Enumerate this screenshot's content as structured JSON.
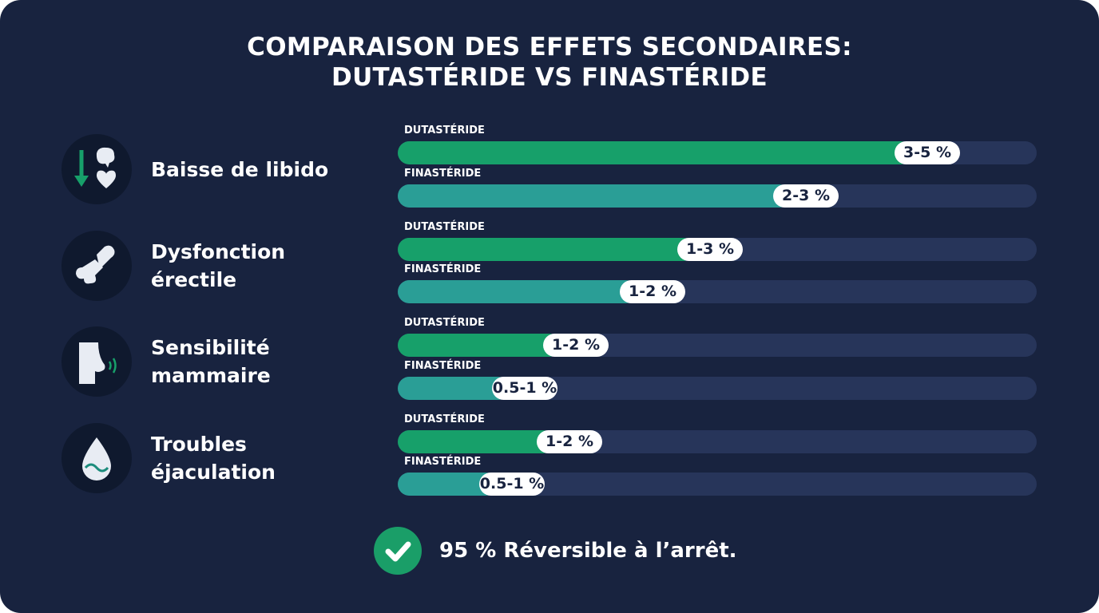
{
  "title_line1": "COMPARAISON DES EFFETS SECONDAIRES:",
  "title_line2": "DUTASTÉRIDE VS FINASTÉRIDE",
  "colors": {
    "background": "#18233f",
    "dutasteride": "#17a06a",
    "finasteride": "#2a9e96",
    "track": "#27355a",
    "check": "#1a9e68"
  },
  "chart_data": {
    "type": "bar",
    "orientation": "horizontal",
    "title": "COMPARAISON DES EFFETS SECONDAIRES: DUTASTÉRIDE VS FINASTÉRIDE",
    "categories": [
      {
        "label_lines": [
          "Baisse de libido"
        ],
        "icon": "libido-down-brain-heart-icon"
      },
      {
        "label_lines": [
          "Dysfonction",
          "érectile"
        ],
        "icon": "broken-penis-icon"
      },
      {
        "label_lines": [
          "Sensibilité",
          "mammaire"
        ],
        "icon": "breast-sensitivity-icon"
      },
      {
        "label_lines": [
          "Troubles",
          "éjaculation"
        ],
        "icon": "drop-wave-icon"
      }
    ],
    "series": [
      {
        "name": "DUTASTÉRIDE",
        "labels": [
          "3-5 %",
          "1-3 %",
          "1-2 %",
          "1-2 %"
        ],
        "fill_fraction": [
          0.88,
          0.54,
          0.33,
          0.32
        ]
      },
      {
        "name": "FINASTÉRIDE",
        "labels": [
          "2-3 %",
          "1-2 %",
          "0.5-1 %",
          "0.5-1 %"
        ],
        "fill_fraction": [
          0.69,
          0.45,
          0.25,
          0.23
        ]
      }
    ]
  },
  "footer": {
    "icon": "check-circle-icon",
    "text": "95 % Réversible à l’arrêt."
  }
}
